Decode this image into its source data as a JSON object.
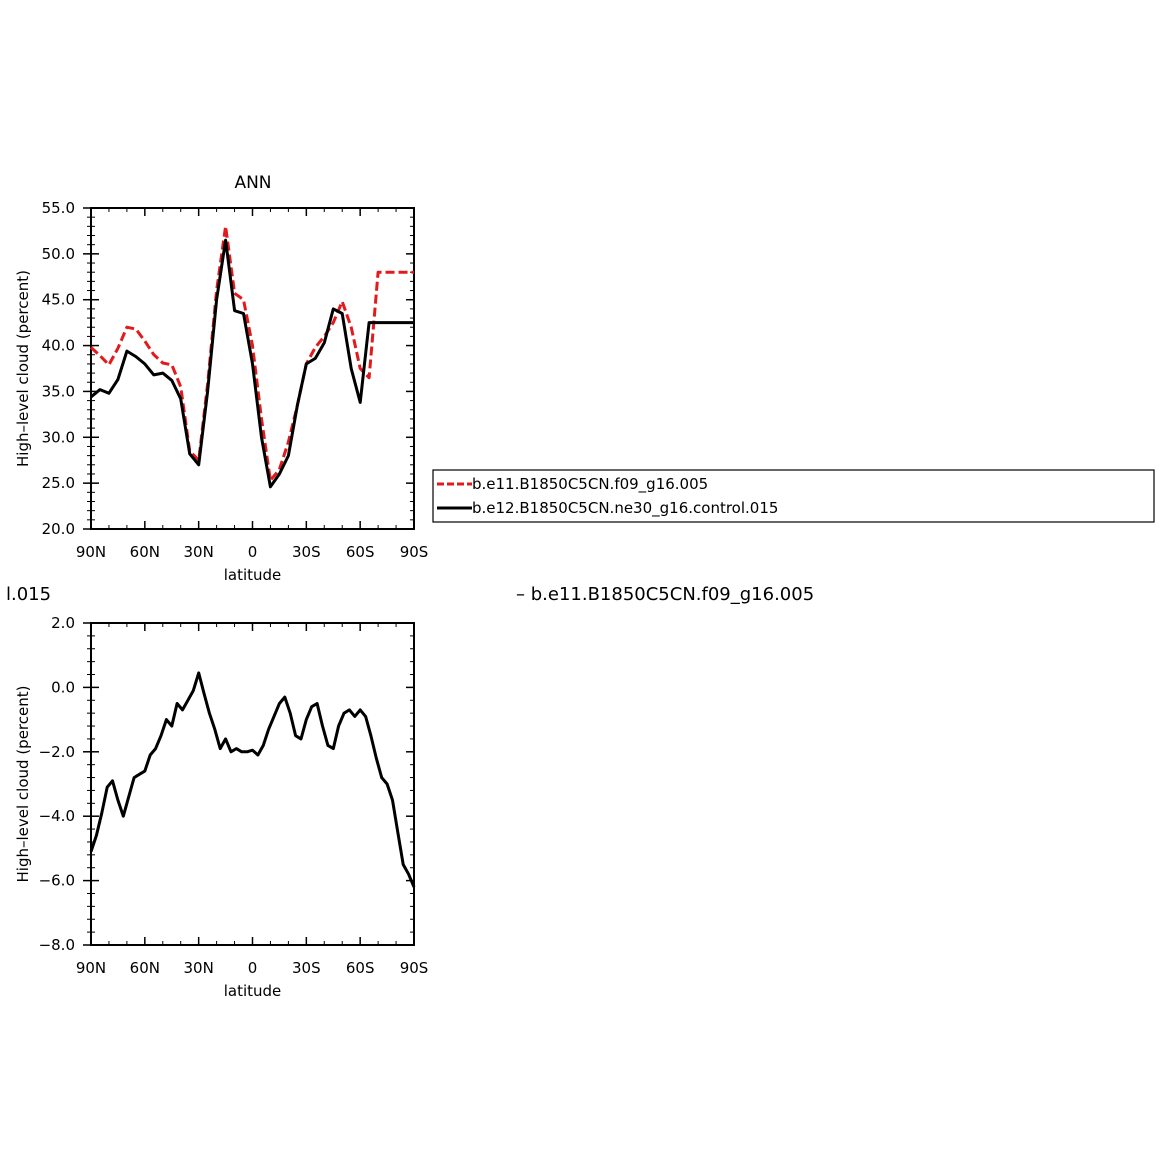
{
  "top_title": "ANN",
  "fragment_left": "l.015",
  "fragment_right": "– b.e11.B1850C5CN.f09_g16.005",
  "colors": {
    "series_red": "#e31a1c",
    "series_black": "#000000"
  },
  "chart_data": [
    {
      "type": "line",
      "title": "ANN",
      "xlabel": "latitude",
      "ylabel": "High–level cloud (percent)",
      "xlim": [
        90,
        -90
      ],
      "ylim": [
        20,
        55
      ],
      "xticks": [
        90,
        60,
        30,
        0,
        -30,
        -60,
        -90
      ],
      "xtick_labels": [
        "90N",
        "60N",
        "30N",
        "0",
        "30S",
        "60S",
        "90S"
      ],
      "yticks": [
        20,
        25,
        30,
        35,
        40,
        45,
        50,
        55
      ],
      "ytick_labels": [
        "20.0",
        "25.0",
        "30.0",
        "35.0",
        "40.0",
        "45.0",
        "50.0",
        "55.0"
      ],
      "legend": {
        "placement": "right"
      },
      "x": [
        90,
        85,
        80,
        75,
        70,
        65,
        60,
        55,
        50,
        45,
        40,
        35,
        30,
        25,
        20,
        15,
        10,
        5,
        0,
        -5,
        -10,
        -15,
        -20,
        -25,
        -30,
        -35,
        -40,
        -45,
        -50,
        -55,
        -60,
        -65,
        -70,
        -75,
        -80,
        -85,
        -90
      ],
      "series": [
        {
          "name": "b.e11.B1850C5CN.f09_g16.005",
          "style": "dashed",
          "color": "#e31a1c",
          "values": [
            39.8,
            38.9,
            37.9,
            39.7,
            42.0,
            41.8,
            40.5,
            39.0,
            38.1,
            37.9,
            35.5,
            28.5,
            27.5,
            35.8,
            46.0,
            53.0,
            45.7,
            45.0,
            40.0,
            32.0,
            25.3,
            26.5,
            29.5,
            33.5,
            38.0,
            39.8,
            41.0,
            42.5,
            44.8,
            42.0,
            37.5,
            36.5,
            48.0,
            48.0,
            48.0,
            48.0,
            48.0
          ]
        },
        {
          "name": "b.e12.B1850C5CN.ne30_g16.control.015",
          "style": "solid",
          "color": "#000000",
          "values": [
            34.4,
            35.2,
            34.8,
            36.3,
            39.4,
            38.8,
            38.0,
            36.8,
            37.0,
            36.2,
            34.2,
            28.2,
            27.0,
            35.0,
            45.0,
            51.5,
            43.8,
            43.5,
            38.0,
            30.0,
            24.6,
            26.0,
            28.0,
            33.5,
            38.0,
            38.6,
            40.3,
            44.0,
            43.5,
            37.5,
            33.8,
            42.5,
            42.5,
            42.5,
            42.5,
            42.5,
            42.5
          ]
        }
      ]
    },
    {
      "type": "line",
      "title": "",
      "xlabel": "latitude",
      "ylabel": "High–level cloud (percent)",
      "xlim": [
        90,
        -90
      ],
      "ylim": [
        -8,
        2
      ],
      "xticks": [
        90,
        60,
        30,
        0,
        -30,
        -60,
        -90
      ],
      "xtick_labels": [
        "90N",
        "60N",
        "30N",
        "0",
        "30S",
        "60S",
        "90S"
      ],
      "yticks": [
        -8,
        -6,
        -4,
        -2,
        0,
        2
      ],
      "ytick_labels": [
        "−8.0",
        "−6.0",
        "−4.0",
        "−2.0",
        "0.0",
        "2.0"
      ],
      "x": [
        90,
        87,
        84,
        81,
        78,
        75,
        72,
        69,
        66,
        63,
        60,
        57,
        54,
        51,
        48,
        45,
        42,
        39,
        36,
        33,
        30,
        27,
        24,
        21,
        18,
        15,
        12,
        9,
        6,
        3,
        0,
        -3,
        -6,
        -9,
        -12,
        -15,
        -18,
        -21,
        -24,
        -27,
        -30,
        -33,
        -36,
        -39,
        -42,
        -45,
        -48,
        -51,
        -54,
        -57,
        -60,
        -63,
        -66,
        -69,
        -72,
        -75,
        -78,
        -81,
        -84,
        -87,
        -90
      ],
      "series": [
        {
          "name": "",
          "style": "solid",
          "color": "#000000",
          "values": [
            -5.1,
            -4.6,
            -3.9,
            -3.1,
            -2.9,
            -3.5,
            -4.0,
            -3.4,
            -2.8,
            -2.7,
            -2.6,
            -2.1,
            -1.9,
            -1.5,
            -1.0,
            -1.2,
            -0.5,
            -0.7,
            -0.4,
            -0.1,
            0.45,
            -0.2,
            -0.8,
            -1.3,
            -1.9,
            -1.6,
            -2.0,
            -1.9,
            -2.0,
            -2.0,
            -1.95,
            -2.1,
            -1.8,
            -1.3,
            -0.9,
            -0.5,
            -0.3,
            -0.8,
            -1.5,
            -1.6,
            -1.0,
            -0.6,
            -0.5,
            -1.2,
            -1.8,
            -1.9,
            -1.2,
            -0.8,
            -0.7,
            -0.9,
            -0.7,
            -0.9,
            -1.5,
            -2.2,
            -2.8,
            -3.0,
            -3.5,
            -4.5,
            -5.5,
            -5.8,
            -6.2
          ]
        }
      ]
    }
  ]
}
